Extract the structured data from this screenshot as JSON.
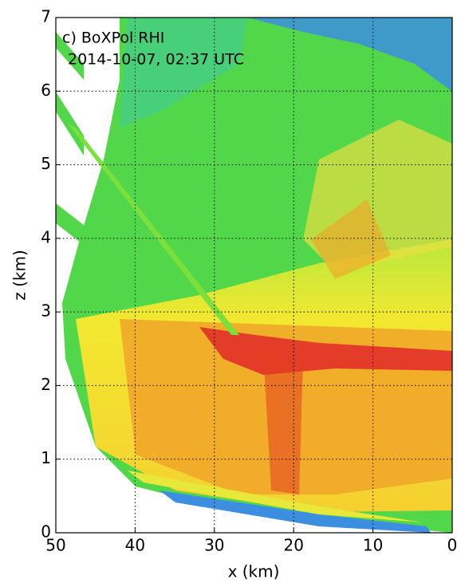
{
  "chart_data": {
    "type": "heatmap",
    "title": "c) BoXPol RHI",
    "subtitle": "2014-10-07, 02:37 UTC",
    "x_label": "x (km)",
    "y_label": "z (km)",
    "xlim": [
      50,
      0
    ],
    "ylim": [
      0,
      7
    ],
    "xticks": [
      50,
      40,
      30,
      20,
      10,
      0
    ],
    "yticks": [
      0,
      1,
      2,
      3,
      4,
      5,
      6,
      7
    ],
    "grid": true
  }
}
